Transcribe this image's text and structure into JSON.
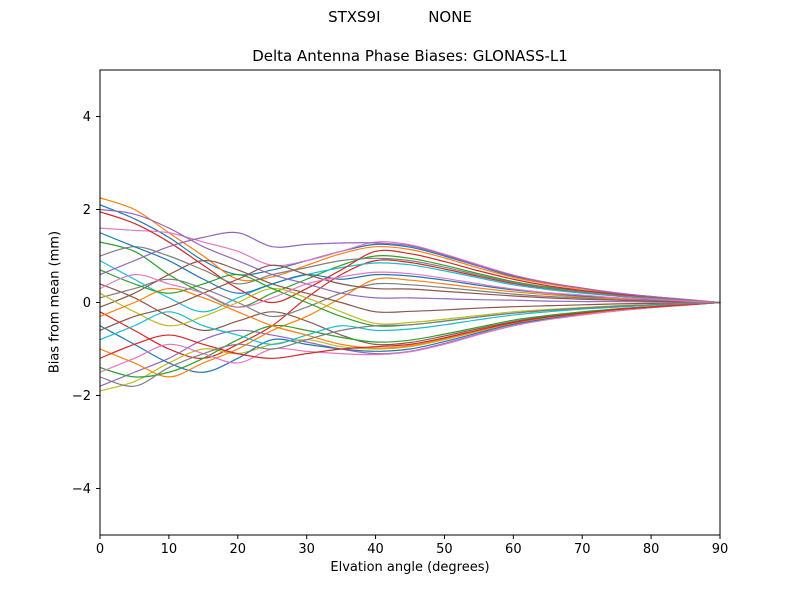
{
  "chart": {
    "suptitle": "STXS9I          NONE"
  },
  "chart_data": {
    "type": "line",
    "title": "Delta Antenna Phase Biases: GLONASS-L1",
    "xlabel": "Elvation angle (degrees)",
    "ylabel": "Bias from mean (mm)",
    "xlim": [
      0,
      90
    ],
    "ylim": [
      -5,
      5
    ],
    "xticks": [
      0,
      10,
      20,
      30,
      40,
      50,
      60,
      70,
      80,
      90
    ],
    "yticks": [
      -4,
      -2,
      0,
      2,
      4
    ],
    "grid": false,
    "legend_position": "none",
    "palette": [
      "#1f77b4",
      "#ff7f0e",
      "#2ca02c",
      "#d62728",
      "#9467bd",
      "#8c564b",
      "#e377c2",
      "#7f7f7f",
      "#bcbd22",
      "#17becf"
    ],
    "x": [
      0,
      5,
      10,
      15,
      20,
      25,
      30,
      35,
      40,
      45,
      50,
      55,
      60,
      65,
      70,
      75,
      80,
      85,
      90
    ],
    "series": [
      {
        "name": "line-01",
        "values": [
          2.1,
          1.8,
          1.4,
          0.9,
          0.6,
          0.7,
          0.9,
          1.1,
          1.25,
          1.19,
          1.0,
          0.78,
          0.56,
          0.41,
          0.3,
          0.2,
          0.13,
          0.06,
          0
        ]
      },
      {
        "name": "line-02",
        "values": [
          2.25,
          2.0,
          1.5,
          1.0,
          0.5,
          0.55,
          0.8,
          1.05,
          1.2,
          1.14,
          0.96,
          0.74,
          0.54,
          0.4,
          0.29,
          0.19,
          0.12,
          0.06,
          0
        ]
      },
      {
        "name": "line-03",
        "values": [
          1.3,
          1.1,
          0.6,
          0.2,
          -0.1,
          0.2,
          0.5,
          0.8,
          1.0,
          0.95,
          0.8,
          0.62,
          0.45,
          0.33,
          0.24,
          0.16,
          0.1,
          0.05,
          0
        ]
      },
      {
        "name": "line-04",
        "values": [
          -0.2,
          -0.6,
          -1.0,
          -1.2,
          -0.9,
          -0.5,
          0.1,
          0.6,
          0.9,
          0.86,
          0.72,
          0.56,
          0.41,
          0.3,
          0.22,
          0.14,
          0.09,
          0.05,
          0
        ]
      },
      {
        "name": "line-05",
        "values": [
          -1.8,
          -1.5,
          -1.2,
          -0.8,
          -0.6,
          -0.7,
          -0.85,
          -1.0,
          -1.1,
          -1.05,
          -0.88,
          -0.68,
          -0.5,
          -0.36,
          -0.26,
          -0.18,
          -0.11,
          -0.05,
          0
        ]
      },
      {
        "name": "line-06",
        "values": [
          0.4,
          0.1,
          -0.3,
          -0.6,
          -0.4,
          -0.2,
          -0.4,
          -0.7,
          -0.9,
          -0.86,
          -0.72,
          -0.56,
          -0.41,
          -0.3,
          -0.22,
          -0.14,
          -0.09,
          -0.05,
          0
        ]
      },
      {
        "name": "line-07",
        "values": [
          1.6,
          1.55,
          1.5,
          1.3,
          1.1,
          0.8,
          0.9,
          1.1,
          1.3,
          1.24,
          1.04,
          0.81,
          0.59,
          0.43,
          0.31,
          0.21,
          0.13,
          0.07,
          0
        ]
      },
      {
        "name": "line-08",
        "values": [
          0.1,
          0.3,
          0.5,
          0.3,
          0.0,
          -0.3,
          -0.1,
          0.2,
          0.4,
          0.38,
          0.32,
          0.25,
          0.18,
          0.13,
          0.1,
          0.06,
          0.04,
          0.02,
          0
        ]
      },
      {
        "name": "line-09",
        "values": [
          -1.9,
          -1.7,
          -1.3,
          -1.0,
          -1.1,
          -0.9,
          -0.8,
          -0.95,
          -1.0,
          -0.95,
          -0.8,
          -0.62,
          -0.45,
          -0.33,
          -0.24,
          -0.16,
          -0.1,
          -0.05,
          0
        ]
      },
      {
        "name": "line-10",
        "values": [
          0.9,
          0.5,
          0.1,
          -0.2,
          0.1,
          0.4,
          0.6,
          0.75,
          0.85,
          0.81,
          0.68,
          0.53,
          0.38,
          0.28,
          0.2,
          0.14,
          0.09,
          0.04,
          0
        ]
      },
      {
        "name": "line-11",
        "values": [
          -0.5,
          -0.9,
          -1.3,
          -1.5,
          -1.2,
          -0.8,
          -0.9,
          -1.0,
          -1.05,
          -1.0,
          -0.84,
          -0.65,
          -0.47,
          -0.35,
          -0.25,
          -0.17,
          -0.11,
          -0.05,
          0
        ]
      },
      {
        "name": "line-12",
        "values": [
          -1.0,
          -1.3,
          -1.6,
          -1.3,
          -1.0,
          -0.6,
          -0.3,
          0.1,
          0.5,
          0.48,
          0.4,
          0.31,
          0.23,
          0.17,
          0.12,
          0.08,
          0.05,
          0.03,
          0
        ]
      },
      {
        "name": "line-13",
        "values": [
          -1.4,
          -1.6,
          -1.5,
          -1.2,
          -0.8,
          -0.5,
          -0.6,
          -0.75,
          -0.85,
          -0.81,
          -0.68,
          -0.53,
          -0.38,
          -0.28,
          -0.2,
          -0.14,
          -0.09,
          -0.04,
          0
        ]
      },
      {
        "name": "line-14",
        "values": [
          1.95,
          1.7,
          1.3,
          0.8,
          0.3,
          0.0,
          0.3,
          0.7,
          1.1,
          1.05,
          0.88,
          0.68,
          0.5,
          0.36,
          0.26,
          0.18,
          0.11,
          0.05,
          0
        ]
      },
      {
        "name": "line-15",
        "values": [
          0.6,
          0.9,
          1.2,
          1.4,
          1.5,
          1.2,
          1.25,
          1.28,
          1.28,
          1.22,
          1.02,
          0.79,
          0.58,
          0.42,
          0.31,
          0.2,
          0.13,
          0.06,
          0
        ]
      },
      {
        "name": "line-16",
        "values": [
          -0.1,
          0.2,
          0.6,
          0.9,
          0.7,
          0.4,
          0.2,
          0.0,
          -0.2,
          -0.19,
          -0.16,
          -0.12,
          -0.09,
          -0.07,
          -0.05,
          -0.03,
          -0.02,
          -0.01,
          0
        ]
      },
      {
        "name": "line-17",
        "values": [
          -1.5,
          -1.2,
          -0.9,
          -1.1,
          -1.3,
          -1.0,
          -1.05,
          -1.1,
          -1.12,
          -1.06,
          -0.9,
          -0.69,
          -0.5,
          -0.37,
          -0.27,
          -0.18,
          -0.11,
          -0.06,
          0
        ]
      },
      {
        "name": "line-18",
        "values": [
          1.0,
          1.2,
          1.0,
          0.7,
          0.4,
          0.6,
          0.75,
          0.9,
          0.95,
          0.9,
          0.76,
          0.59,
          0.43,
          0.31,
          0.23,
          0.15,
          0.1,
          0.05,
          0
        ]
      },
      {
        "name": "line-19",
        "values": [
          0.2,
          -0.2,
          -0.5,
          -0.3,
          0.0,
          0.3,
          0.1,
          -0.2,
          -0.45,
          -0.43,
          -0.36,
          -0.28,
          -0.2,
          -0.15,
          -0.11,
          -0.07,
          -0.05,
          -0.02,
          0
        ]
      },
      {
        "name": "line-20",
        "values": [
          -0.8,
          -0.5,
          -0.2,
          -0.5,
          -0.7,
          -0.9,
          -0.7,
          -0.5,
          -0.6,
          -0.57,
          -0.48,
          -0.37,
          -0.27,
          -0.2,
          -0.14,
          -0.1,
          -0.06,
          -0.03,
          0
        ]
      },
      {
        "name": "line-21",
        "values": [
          1.5,
          1.2,
          0.9,
          0.5,
          0.2,
          0.4,
          0.6,
          0.5,
          0.6,
          0.57,
          0.48,
          0.37,
          0.27,
          0.2,
          0.14,
          0.1,
          0.06,
          0.03,
          0
        ]
      },
      {
        "name": "line-22",
        "values": [
          -0.3,
          0.0,
          0.3,
          0.1,
          -0.2,
          -0.5,
          -0.7,
          -0.9,
          -0.98,
          -0.93,
          -0.78,
          -0.61,
          -0.44,
          -0.32,
          -0.24,
          -0.16,
          -0.1,
          -0.05,
          0
        ]
      },
      {
        "name": "line-23",
        "values": [
          0.7,
          0.4,
          0.2,
          0.4,
          0.6,
          0.3,
          0.0,
          -0.3,
          -0.5,
          -0.48,
          -0.4,
          -0.31,
          -0.23,
          -0.17,
          -0.12,
          -0.08,
          -0.05,
          -0.03,
          0
        ]
      },
      {
        "name": "line-24",
        "values": [
          -1.2,
          -0.9,
          -0.7,
          -0.9,
          -1.1,
          -1.2,
          -1.1,
          -1.0,
          -0.95,
          -0.9,
          -0.76,
          -0.59,
          -0.43,
          -0.31,
          -0.23,
          -0.15,
          -0.1,
          -0.05,
          0
        ]
      },
      {
        "name": "line-25",
        "values": [
          2.0,
          1.9,
          1.6,
          1.2,
          0.9,
          0.6,
          0.4,
          0.2,
          0.1,
          0.1,
          0.08,
          0.06,
          0.05,
          0.03,
          0.02,
          0.02,
          0.01,
          0.01,
          0
        ]
      },
      {
        "name": "line-26",
        "values": [
          -0.6,
          -0.3,
          -0.1,
          0.2,
          0.5,
          0.8,
          0.6,
          0.4,
          0.3,
          0.29,
          0.24,
          0.19,
          0.14,
          0.1,
          0.07,
          0.05,
          0.03,
          0.02,
          0
        ]
      },
      {
        "name": "line-27",
        "values": [
          0.3,
          0.6,
          0.4,
          0.2,
          -0.1,
          0.1,
          0.4,
          0.55,
          0.65,
          0.62,
          0.52,
          0.4,
          0.29,
          0.21,
          0.16,
          0.1,
          0.07,
          0.03,
          0
        ]
      },
      {
        "name": "line-28",
        "values": [
          -1.6,
          -1.8,
          -1.4,
          -1.1,
          -0.9,
          -1.0,
          -0.8,
          -0.6,
          -0.5,
          -0.48,
          -0.4,
          -0.31,
          -0.23,
          -0.17,
          -0.12,
          -0.08,
          -0.05,
          -0.03,
          0
        ]
      }
    ]
  }
}
